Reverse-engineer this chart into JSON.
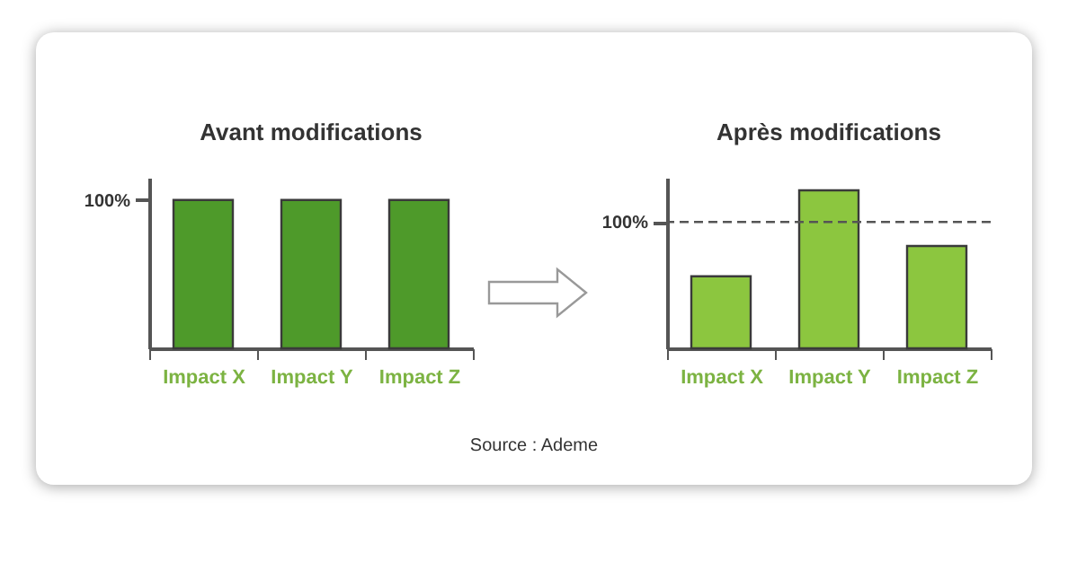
{
  "chart_data": [
    {
      "type": "bar",
      "title": "Avant modifications",
      "categories": [
        "Impact X",
        "Impact Y",
        "Impact Z"
      ],
      "values": [
        100,
        100,
        100
      ],
      "color": "#4e9a2a",
      "ylim": [
        0,
        115
      ],
      "yticks": [
        {
          "value": 100,
          "label": "100%"
        }
      ]
    },
    {
      "type": "bar",
      "title": "Après modifications",
      "categories": [
        "Impact X",
        "Impact Y",
        "Impact Z"
      ],
      "values": [
        57,
        125,
        81
      ],
      "color": "#8cc63f",
      "ylim": [
        0,
        135
      ],
      "yticks": [
        {
          "value": 100,
          "label": "100%"
        }
      ],
      "ref_lines": [
        {
          "axis": "y",
          "value": 100,
          "line_style": "dashed"
        }
      ],
      "annotations": [
        "Source : Ademe"
      ]
    }
  ]
}
